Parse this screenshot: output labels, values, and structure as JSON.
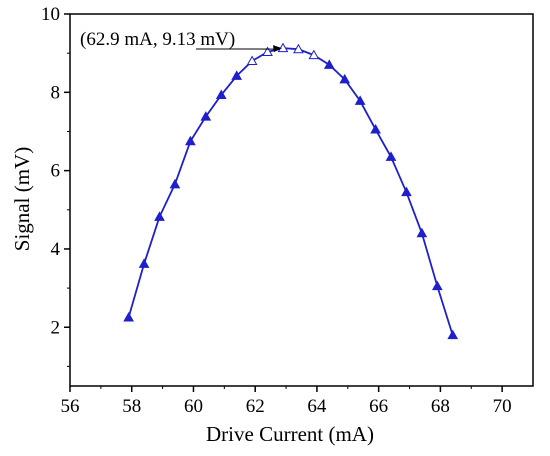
{
  "chart_data": {
    "type": "line",
    "xlabel": "Drive Current (mA)",
    "ylabel": "Signal (mV)",
    "xlim": [
      56,
      71
    ],
    "ylim": [
      0.5,
      10
    ],
    "xticks": [
      56,
      58,
      60,
      62,
      64,
      66,
      68,
      70
    ],
    "yticks": [
      2,
      4,
      6,
      8,
      10
    ],
    "grid": false,
    "series_color": "#1f1fcc",
    "marker": "triangle",
    "series": [
      {
        "x": [
          57.9,
          58.4,
          58.9,
          59.4,
          59.9,
          60.4,
          60.9,
          61.4,
          61.9,
          62.4,
          62.9,
          63.4,
          63.9,
          64.4,
          64.9,
          65.4,
          65.9,
          66.4,
          66.9,
          67.4,
          67.9,
          68.4
        ],
        "y": [
          2.25,
          3.62,
          4.82,
          5.65,
          6.75,
          7.38,
          7.93,
          8.42,
          8.8,
          9.03,
          9.13,
          9.1,
          8.95,
          8.7,
          8.33,
          7.78,
          7.05,
          6.35,
          5.45,
          4.4,
          3.05,
          1.8
        ]
      }
    ],
    "annotation": {
      "text": "(62.9 mA, 9.13 mV)",
      "x": 62.9,
      "y": 9.13
    }
  }
}
